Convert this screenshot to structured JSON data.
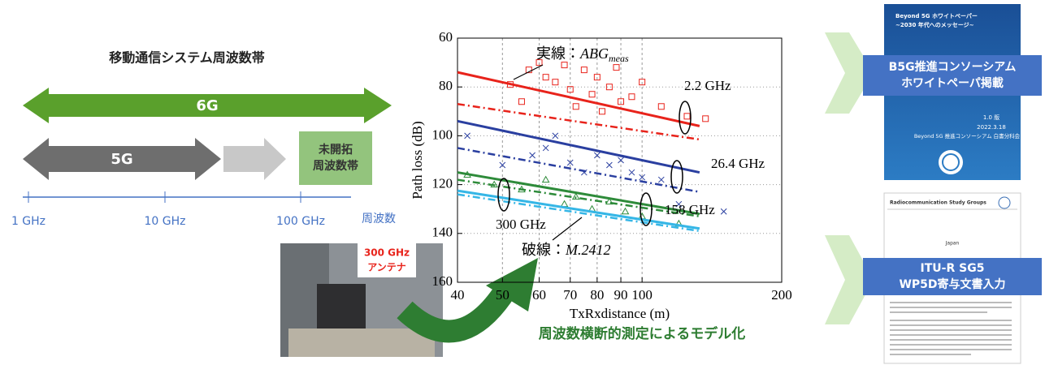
{
  "diagram": {
    "title": "移動通信システム周波数帯",
    "band_6g": "6G",
    "band_5g": "5G",
    "unexplored_band": [
      "未開拓",
      "周波数帯"
    ],
    "axis_labels": [
      "1 GHz",
      "10 GHz",
      "100 GHz"
    ],
    "axis_title": "周波数"
  },
  "chart_data": {
    "type": "line",
    "xlabel": "TxRxdistance (m)",
    "ylabel": "Path loss (dB)",
    "xscale": "log",
    "xlim": [
      40,
      200
    ],
    "ylim": [
      160,
      60
    ],
    "xticks": [
      40,
      50,
      60,
      70,
      80,
      90,
      100,
      200
    ],
    "yticks": [
      60,
      80,
      100,
      120,
      140,
      160
    ],
    "grid": true,
    "solid_label": {
      "prefix": "実線：",
      "model": "ABG",
      "sub": "meas"
    },
    "dashed_label": {
      "prefix": "破線：",
      "model": "M.2412"
    },
    "series": [
      {
        "name": "2.2 GHz",
        "color": "#e8231b",
        "marker": "square",
        "x": [
          40,
          133
        ],
        "abg": [
          74,
          96
        ],
        "m2412": [
          87,
          101.5
        ],
        "points_x": [
          52,
          55,
          57,
          60,
          62,
          65,
          68,
          70,
          72,
          75,
          78,
          80,
          82,
          85,
          88,
          90,
          95,
          100,
          110,
          125,
          137
        ],
        "points_y": [
          79,
          86,
          73,
          70,
          76,
          78,
          71,
          81,
          88,
          73,
          83,
          76,
          90,
          80,
          72,
          86,
          84,
          78,
          88,
          92,
          93
        ]
      },
      {
        "name": "26.4 GHz",
        "color": "#2a3fa0",
        "marker": "cross",
        "x": [
          40,
          133
        ],
        "abg": [
          94,
          115
        ],
        "m2412": [
          105,
          123
        ],
        "points_x": [
          42,
          50,
          58,
          62,
          65,
          70,
          75,
          80,
          85,
          90,
          95,
          100,
          110,
          120,
          150
        ],
        "points_y": [
          100,
          112,
          108,
          105,
          100,
          111,
          115,
          108,
          112,
          110,
          115,
          117,
          118,
          128,
          131
        ]
      },
      {
        "name": "158 GHz",
        "color": "#2e8b3a",
        "marker": "triangle",
        "x": [
          40,
          133
        ],
        "abg": [
          115,
          132
        ],
        "m2412": [
          118,
          133
        ],
        "points_x": [
          42,
          48,
          55,
          62,
          68,
          72,
          78,
          85,
          92,
          100,
          120
        ],
        "points_y": [
          116,
          120,
          122,
          118,
          128,
          125,
          130,
          127,
          131,
          133,
          136
        ]
      },
      {
        "name": "300 GHz",
        "color": "#35b6e6",
        "marker": "none",
        "x": [
          40,
          133
        ],
        "abg": [
          122.5,
          138
        ],
        "m2412": [
          124,
          139
        ],
        "points_x": [],
        "points_y": []
      }
    ]
  },
  "photo": {
    "label": [
      "300 GHz",
      "アンテナ"
    ]
  },
  "caption": "周波数横断的測定によるモデル化",
  "documents": [
    {
      "badge": [
        "B5G推進コンソーシアム",
        "ホワイトペーパ掲載"
      ],
      "cover_title": [
        "Beyond 5G ホワイトペーパー",
        "~2030 年代へのメッセージ~"
      ],
      "version": "1.0 版",
      "date": "2022.3.18",
      "publisher": "Beyond 5G 推進コンソーシアム 白書分科会"
    },
    {
      "badge": [
        "ITU-R SG5",
        "WP5D寄与文書入力"
      ],
      "header": "Radiocommunication Study Groups",
      "country": "Japan"
    }
  ]
}
